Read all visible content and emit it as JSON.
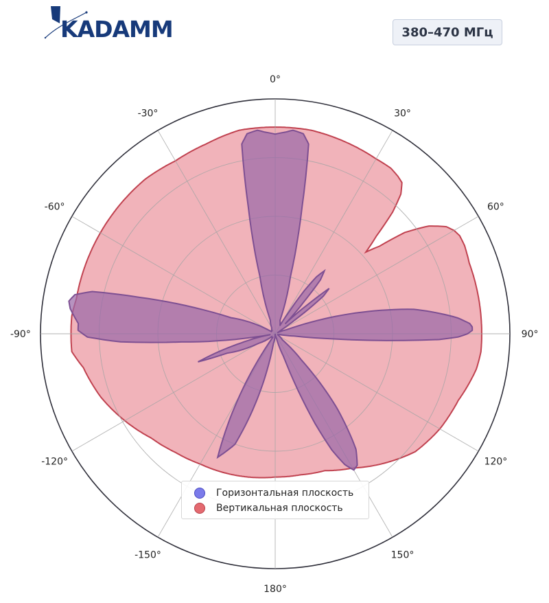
{
  "brand": {
    "logo_text": "KADAMM"
  },
  "badge": {
    "frequency": "380–470 МГц"
  },
  "chart_data": {
    "type": "polar-area",
    "theta_zero": "top",
    "theta_direction": "clockwise",
    "theta_ticks": [
      "0°",
      "30°",
      "60°",
      "90°",
      "120°",
      "150°",
      "180°",
      "-150°",
      "-120°",
      "-90°",
      "-60°",
      "-30°"
    ],
    "r_max": 1.0,
    "r_grid": [
      0.25,
      0.5,
      0.75,
      1.0
    ],
    "grid": true,
    "legend_position": "bottom-center",
    "colors": {
      "horizontal_fill": "#9b6aa8",
      "horizontal_line": "#7d4f92",
      "vertical_fill": "#eea6ae",
      "vertical_line": "#c0414f",
      "horizontal_swatch": "#7b7bea",
      "vertical_swatch": "#e46a70"
    },
    "series": [
      {
        "name": "Горизонтальная плоскость",
        "theta": [
          -180,
          -170,
          -160,
          -155,
          -150,
          -145,
          -140,
          -130,
          -120,
          -115,
          -112,
          -110,
          -105,
          -100,
          -95,
          -93,
          -91,
          -89,
          -87,
          -85,
          -83,
          -81,
          -79,
          -77,
          -75,
          -70,
          -60,
          -45,
          -30,
          -20,
          -15,
          -12,
          -10,
          -8,
          -5,
          -3,
          0,
          3,
          5,
          8,
          10,
          12,
          15,
          20,
          30,
          32,
          34,
          36,
          38,
          40,
          42,
          45,
          48,
          50,
          52,
          55,
          58,
          60,
          65,
          70,
          80,
          85,
          87,
          88,
          89,
          90,
          91,
          92,
          93,
          95,
          97,
          100,
          110,
          120,
          130,
          135,
          140,
          145,
          148,
          150,
          152,
          154,
          156,
          158,
          160,
          165,
          170,
          175,
          180
        ],
        "r": [
          0,
          0.04,
          0.5,
          0.58,
          0.3,
          0.02,
          0.02,
          0.02,
          0.08,
          0.17,
          0.22,
          0.35,
          0.15,
          0.02,
          0.4,
          0.66,
          0.8,
          0.84,
          0.84,
          0.86,
          0.88,
          0.89,
          0.87,
          0.8,
          0.6,
          0.2,
          0.02,
          0.02,
          0.03,
          0.06,
          0.25,
          0.55,
          0.82,
          0.86,
          0.87,
          0.86,
          0.85,
          0.86,
          0.87,
          0.86,
          0.82,
          0.55,
          0.25,
          0.06,
          0.04,
          0.1,
          0.22,
          0.3,
          0.34,
          0.3,
          0.18,
          0.06,
          0.18,
          0.3,
          0.26,
          0.1,
          0.03,
          0.02,
          0.01,
          0.05,
          0.6,
          0.78,
          0.83,
          0.84,
          0.84,
          0.82,
          0.78,
          0.7,
          0.55,
          0.25,
          0.08,
          0.02,
          0.01,
          0.02,
          0.04,
          0.16,
          0.4,
          0.6,
          0.66,
          0.67,
          0.63,
          0.55,
          0.42,
          0.26,
          0.1,
          0.02,
          0.01,
          0.01,
          0
        ]
      },
      {
        "name": "Вертикальная плоскость",
        "theta": [
          -180,
          -170,
          -160,
          -150,
          -140,
          -130,
          -120,
          -110,
          -100,
          -95,
          -90,
          -85,
          -80,
          -70,
          -60,
          -50,
          -40,
          -30,
          -20,
          -10,
          0,
          10,
          20,
          30,
          35,
          38,
          40,
          42,
          44,
          46,
          48,
          50,
          52,
          55,
          58,
          60,
          62,
          65,
          70,
          75,
          80,
          85,
          90,
          95,
          100,
          110,
          120,
          130,
          140,
          150,
          160,
          170,
          180
        ],
        "r": [
          0.61,
          0.62,
          0.63,
          0.64,
          0.66,
          0.69,
          0.74,
          0.79,
          0.83,
          0.87,
          0.87,
          0.87,
          0.86,
          0.86,
          0.86,
          0.86,
          0.86,
          0.85,
          0.86,
          0.88,
          0.88,
          0.88,
          0.87,
          0.86,
          0.86,
          0.85,
          0.84,
          0.8,
          0.72,
          0.6,
          0.52,
          0.58,
          0.7,
          0.8,
          0.86,
          0.88,
          0.89,
          0.89,
          0.88,
          0.88,
          0.88,
          0.88,
          0.88,
          0.88,
          0.87,
          0.83,
          0.81,
          0.78,
          0.72,
          0.66,
          0.62,
          0.61,
          0.61
        ]
      }
    ]
  }
}
